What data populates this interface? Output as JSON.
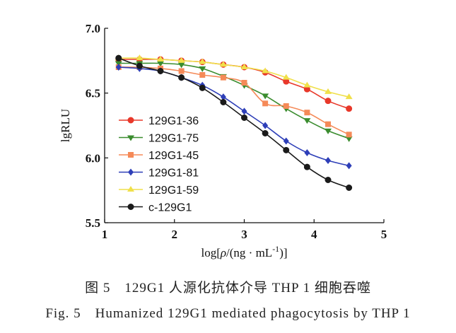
{
  "chart_data": {
    "type": "line",
    "xlabel_pre": "log[",
    "xlabel_rho": "ρ",
    "xlabel_mid": "/(ng · mL",
    "xlabel_sup": "-1",
    "xlabel_post": ")]",
    "ylabel": "lgRLU",
    "xlim": [
      1,
      5
    ],
    "ylim": [
      5.5,
      7.0
    ],
    "x_ticks": [
      "1",
      "2",
      "3",
      "4",
      "5"
    ],
    "y_ticks": [
      "5.5",
      "6.0",
      "6.5",
      "7.0"
    ],
    "grid": false,
    "legend_position": "left",
    "x": [
      1.2,
      1.5,
      1.8,
      2.1,
      2.4,
      2.7,
      3.0,
      3.3,
      3.6,
      3.9,
      4.2,
      4.5
    ],
    "series": [
      {
        "name": "129G1-36",
        "color": "#e8382a",
        "marker": "circle",
        "values": [
          6.76,
          6.76,
          6.76,
          6.75,
          6.74,
          6.72,
          6.7,
          6.66,
          6.59,
          6.53,
          6.44,
          6.38
        ]
      },
      {
        "name": "129G1-75",
        "color": "#3a8c2e",
        "marker": "triangle-down",
        "values": [
          6.73,
          6.73,
          6.73,
          6.72,
          6.69,
          6.63,
          6.56,
          6.48,
          6.38,
          6.29,
          6.21,
          6.15
        ]
      },
      {
        "name": "129G1-45",
        "color": "#f58a58",
        "marker": "square",
        "values": [
          6.7,
          6.7,
          6.69,
          6.67,
          6.64,
          6.62,
          6.58,
          6.42,
          6.4,
          6.35,
          6.26,
          6.18
        ]
      },
      {
        "name": "129G1-81",
        "color": "#2e3fb8",
        "marker": "diamond",
        "values": [
          6.7,
          6.69,
          6.67,
          6.62,
          6.56,
          6.47,
          6.36,
          6.25,
          6.13,
          6.04,
          5.98,
          5.94
        ]
      },
      {
        "name": "129G1-59",
        "color": "#f0e04a",
        "marker": "triangle-up",
        "values": [
          6.77,
          6.77,
          6.76,
          6.75,
          6.74,
          6.72,
          6.7,
          6.67,
          6.62,
          6.56,
          6.51,
          6.47
        ]
      },
      {
        "name": "c-129G1",
        "color": "#1a1a1a",
        "marker": "circle",
        "values": [
          6.77,
          6.71,
          6.67,
          6.62,
          6.54,
          6.43,
          6.31,
          6.19,
          6.06,
          5.93,
          5.83,
          5.77
        ]
      }
    ]
  },
  "caption": {
    "cn": "图 5　129G1 人源化抗体介导 THP 1 细胞吞噬",
    "en": "Fig. 5　Humanized 129G1 mediated phagocytosis by THP 1"
  }
}
